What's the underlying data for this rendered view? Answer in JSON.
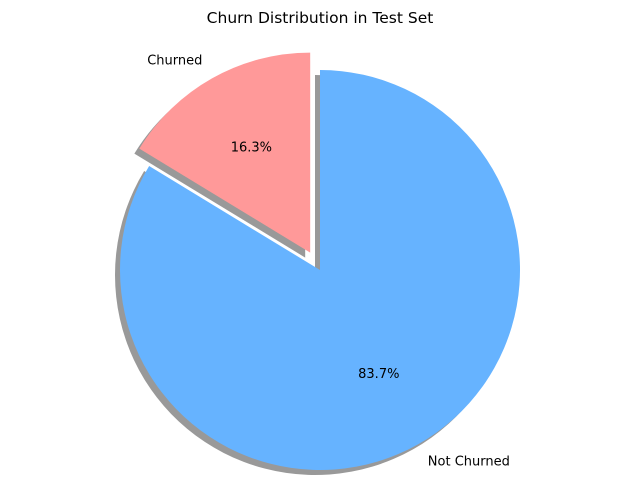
{
  "chart_data": {
    "type": "pie",
    "title": "Churn Distribution in Test Set",
    "slices": [
      {
        "label": "Not Churned",
        "value": 83.7,
        "pct_label": "83.7%",
        "color": "#66b3ff",
        "exploded": false
      },
      {
        "label": "Churned",
        "value": 16.3,
        "pct_label": "16.3%",
        "color": "#ff9999",
        "exploded": true
      }
    ],
    "start_angle_deg": 90,
    "direction": "clockwise",
    "shadow": true
  }
}
